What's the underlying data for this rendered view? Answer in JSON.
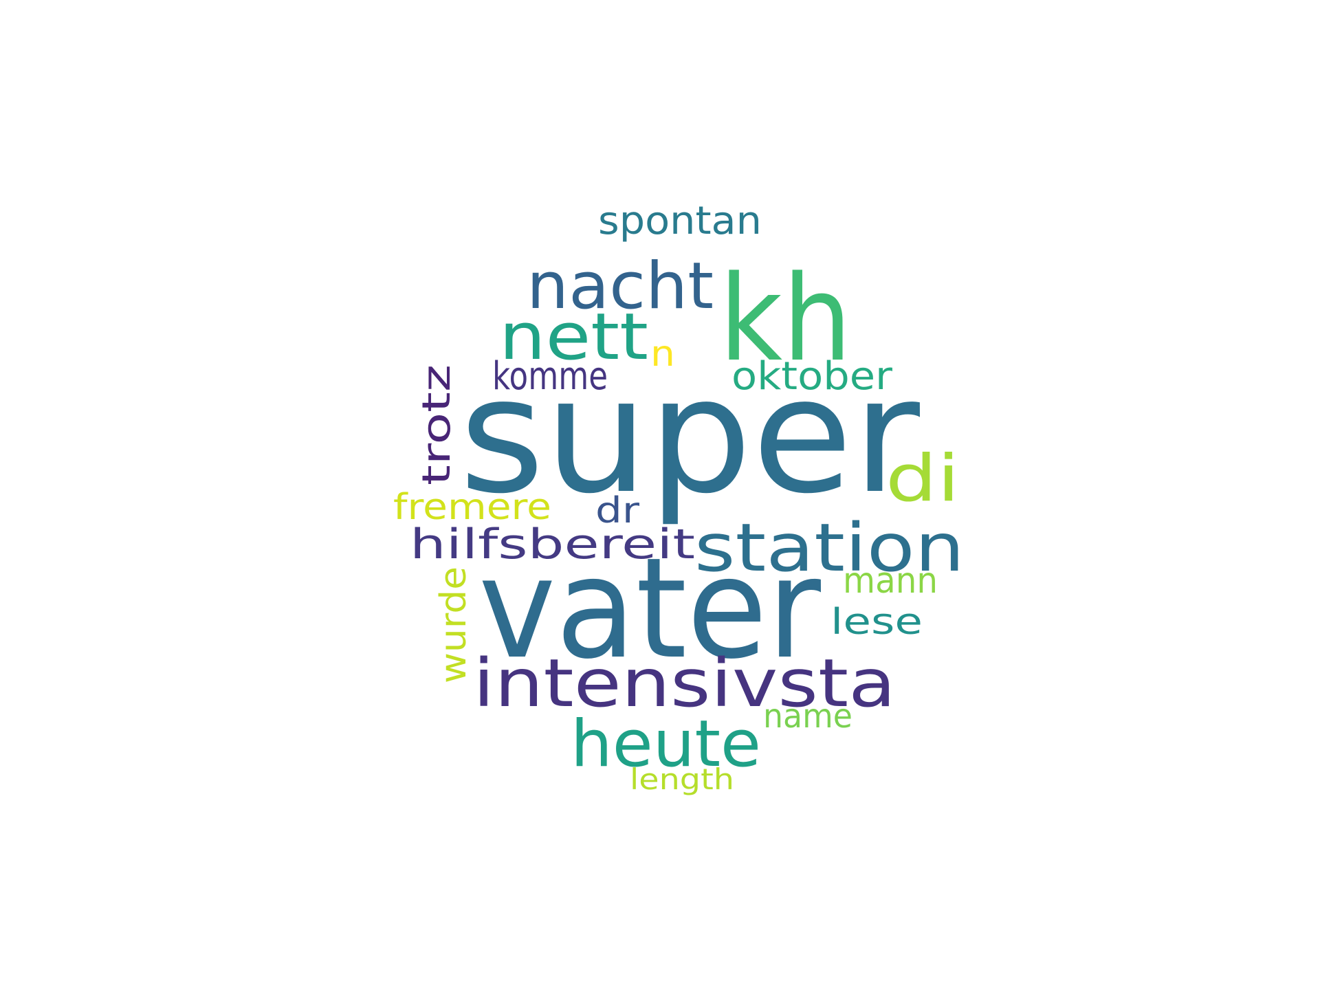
{
  "wordcloud": {
    "words": [
      {
        "key": "super",
        "text": "super",
        "color": "#2e6f8e"
      },
      {
        "key": "vater",
        "text": "vater",
        "color": "#2f6c8e"
      },
      {
        "key": "kh",
        "text": "kh",
        "color": "#3dbc74"
      },
      {
        "key": "intensivsta",
        "text": "intensivsta",
        "color": "#463480"
      },
      {
        "key": "station",
        "text": "station",
        "color": "#2d708e"
      },
      {
        "key": "nacht",
        "text": "nacht",
        "color": "#33638d"
      },
      {
        "key": "nett",
        "text": "nett",
        "color": "#20a386"
      },
      {
        "key": "heute",
        "text": "heute",
        "color": "#1fa187"
      },
      {
        "key": "di",
        "text": "di",
        "color": "#a5db36"
      },
      {
        "key": "hilfsbereit",
        "text": "hilfsbereit",
        "color": "#443a83"
      },
      {
        "key": "spontan",
        "text": "spontan",
        "color": "#297b8e"
      },
      {
        "key": "oktober",
        "text": "oktober",
        "color": "#25ab82"
      },
      {
        "key": "komme",
        "text": "komme",
        "color": "#453581"
      },
      {
        "key": "trotz",
        "text": "trotz",
        "color": "#482576"
      },
      {
        "key": "fremere",
        "text": "fremere",
        "color": "#d2e21b"
      },
      {
        "key": "dr",
        "text": "dr",
        "color": "#3a548c"
      },
      {
        "key": "mann",
        "text": "mann",
        "color": "#8bd646"
      },
      {
        "key": "lese",
        "text": "lese",
        "color": "#21918c"
      },
      {
        "key": "wurde",
        "text": "wurde",
        "color": "#c2df23"
      },
      {
        "key": "name",
        "text": "name",
        "color": "#7ad151"
      },
      {
        "key": "n",
        "text": "n",
        "color": "#fde725"
      },
      {
        "key": "length",
        "text": "length",
        "color": "#b5de2b"
      }
    ]
  }
}
